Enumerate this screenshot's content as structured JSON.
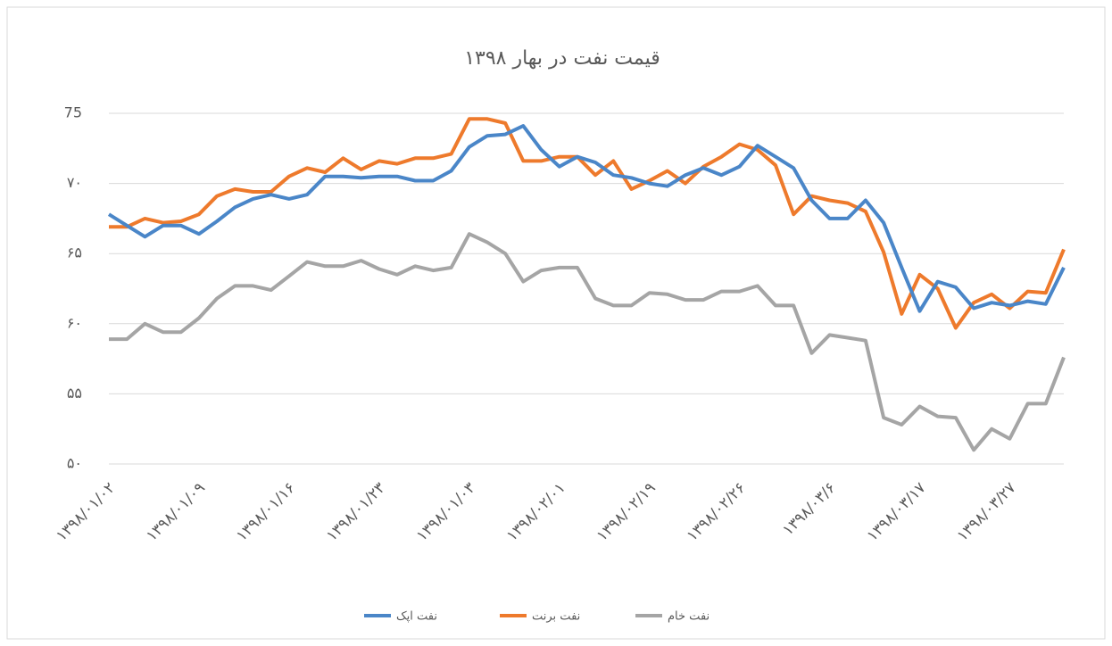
{
  "chart_data": {
    "type": "line",
    "title": "قیمت نفت در بهار ۱۳۹۸",
    "categories": [
      "۱۳۹۸/۰۱/۰۲",
      null,
      null,
      null,
      null,
      "۱۳۹۸/۰۱/۰۹",
      null,
      null,
      null,
      null,
      "۱۳۹۸/۰۱/۱۶",
      null,
      null,
      null,
      null,
      "۱۳۹۸/۰۱/۲۳",
      null,
      null,
      null,
      null,
      "۱۳۹۸/۰۱/۰۳",
      null,
      null,
      null,
      null,
      "۱۳۹۸/۰۲/۰۱",
      null,
      null,
      null,
      null,
      "۱۳۹۸/۰۲/۱۹",
      null,
      null,
      null,
      null,
      "۱۳۹۸/۰۲/۲۶",
      null,
      null,
      null,
      null,
      "۱۳۹۸/۰۳/۶",
      null,
      null,
      null,
      null,
      "۱۳۹۸/۰۳/۱۷",
      null,
      null,
      null,
      null,
      "۱۳۹۸/۰۳/۲۷",
      null,
      null,
      null
    ],
    "series": [
      {
        "name": "نفت اپک",
        "color": "#4a86c8",
        "values": [
          67.8,
          67.0,
          66.2,
          67.0,
          67.0,
          66.4,
          67.3,
          68.3,
          68.9,
          69.2,
          68.9,
          69.2,
          70.5,
          70.5,
          70.4,
          70.5,
          70.5,
          70.2,
          70.2,
          70.9,
          72.6,
          73.4,
          73.5,
          74.1,
          72.4,
          71.2,
          71.9,
          71.5,
          70.6,
          70.4,
          70.0,
          69.8,
          70.6,
          71.1,
          70.6,
          71.2,
          72.7,
          71.9,
          71.1,
          68.8,
          67.5,
          67.5,
          68.8,
          67.2,
          64.0,
          60.9,
          63.0,
          62.6,
          61.1,
          61.5,
          61.3,
          61.6,
          61.4,
          64.0
        ]
      },
      {
        "name": "نفت برنت",
        "color": "#ee7a2c",
        "values": [
          66.9,
          66.9,
          67.5,
          67.2,
          67.3,
          67.8,
          69.1,
          69.6,
          69.4,
          69.4,
          70.5,
          71.1,
          70.8,
          71.8,
          71.0,
          71.6,
          71.4,
          71.8,
          71.8,
          72.1,
          74.6,
          74.6,
          74.3,
          71.6,
          71.6,
          71.9,
          71.9,
          70.6,
          71.6,
          69.6,
          70.2,
          70.9,
          70.0,
          71.2,
          71.9,
          72.8,
          72.4,
          71.3,
          67.8,
          69.1,
          68.8,
          68.6,
          68.0,
          65.1,
          60.7,
          63.5,
          62.5,
          59.7,
          61.5,
          62.1,
          61.1,
          62.3,
          62.2,
          65.3
        ]
      },
      {
        "name": "نفت خام",
        "color": "#a5a5a5",
        "values": [
          58.9,
          58.9,
          60.0,
          59.4,
          59.4,
          60.4,
          61.8,
          62.7,
          62.7,
          62.4,
          63.4,
          64.4,
          64.1,
          64.1,
          64.5,
          63.9,
          63.5,
          64.1,
          63.8,
          64.0,
          66.4,
          65.8,
          65.0,
          63.0,
          63.8,
          64.0,
          64.0,
          61.8,
          61.3,
          61.3,
          62.2,
          62.1,
          61.7,
          61.7,
          62.3,
          62.3,
          62.7,
          61.3,
          61.3,
          57.9,
          59.2,
          59.0,
          58.8,
          53.3,
          52.8,
          54.1,
          53.4,
          53.3,
          51.0,
          52.5,
          51.8,
          54.3,
          54.3,
          57.6
        ]
      }
    ],
    "ylim": [
      50,
      75
    ],
    "yticks": [
      {
        "value": 50,
        "label": "۵۰"
      },
      {
        "value": 55,
        "label": "۵۵"
      },
      {
        "value": 60,
        "label": "۶۰"
      },
      {
        "value": 65,
        "label": "۶۵"
      },
      {
        "value": 70,
        "label": "۷۰"
      },
      75
    ],
    "grid": true,
    "legend": "bottom"
  }
}
